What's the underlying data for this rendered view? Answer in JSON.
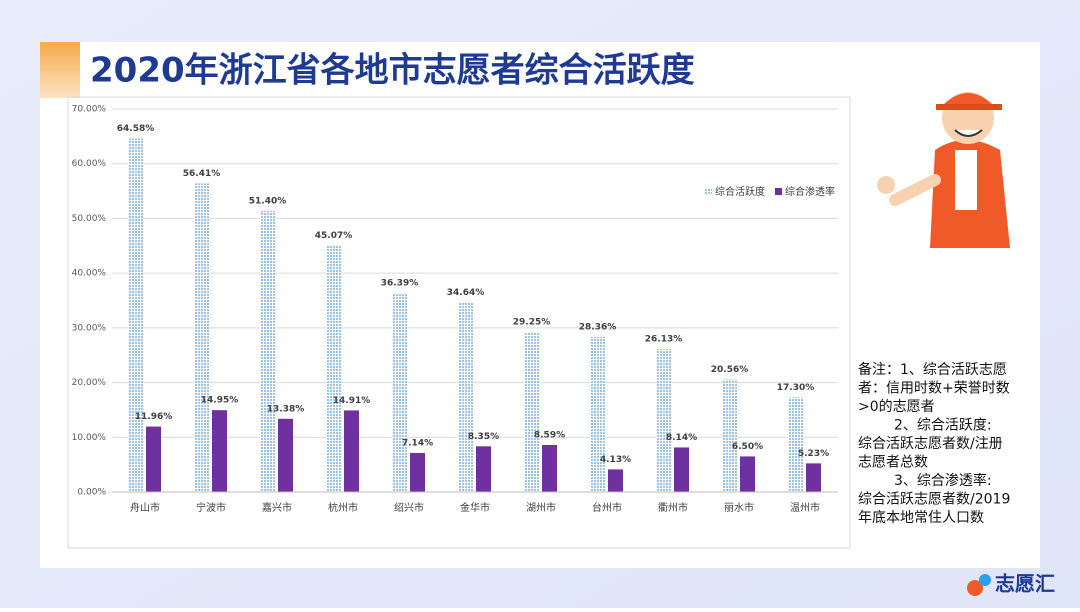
{
  "chart_data": {
    "type": "bar",
    "title": "2020年浙江省各地市志愿者综合活跃度",
    "categories": [
      "舟山市",
      "宁波市",
      "嘉兴市",
      "杭州市",
      "绍兴市",
      "金华市",
      "湖州市",
      "台州市",
      "衢州市",
      "丽水市",
      "温州市"
    ],
    "series": [
      {
        "name": "综合活跃度",
        "color": "#9dc3e6",
        "values": [
          64.58,
          56.41,
          51.4,
          45.07,
          36.39,
          34.64,
          29.25,
          28.36,
          26.13,
          20.56,
          17.3
        ],
        "value_labels": [
          "64.58%",
          "56.41%",
          "51.40%",
          "45.07%",
          "36.39%",
          "34.64%",
          "29.25%",
          "28.36%",
          "26.13%",
          "20.56%",
          "17.30%"
        ]
      },
      {
        "name": "综合渗透率",
        "color": "#7030a0",
        "values": [
          11.96,
          14.95,
          13.38,
          14.91,
          7.14,
          8.35,
          8.59,
          4.13,
          8.14,
          6.5,
          5.23
        ],
        "value_labels": [
          "11.96%",
          "14.95%",
          "13.38%",
          "14.91%",
          "7.14%",
          "8.35%",
          "8.59%",
          "4.13%",
          "8.14%",
          "6.50%",
          "5.23%"
        ]
      }
    ],
    "ylim": [
      0,
      70
    ],
    "yticks": [
      {
        "value": 0,
        "label": "0.00%"
      },
      {
        "value": 10,
        "label": "10.00%"
      },
      {
        "value": 20,
        "label": "20.00%"
      },
      {
        "value": 30,
        "label": "30.00%"
      },
      {
        "value": 40,
        "label": "40.00%"
      },
      {
        "value": 50,
        "label": "50.00%"
      },
      {
        "value": 60,
        "label": "60.00%"
      },
      {
        "value": 70,
        "label": "70.00%"
      }
    ],
    "grid": true,
    "legend": "upper right",
    "notes": [
      "备注：1、综合活跃志愿",
      "者：信用时数+荣誉时数",
      ">0的志愿者",
      "2、综合活跃度:",
      "综合活跃志愿者数/注册",
      "志愿者总数",
      "3、综合渗透率:",
      "综合活跃志愿者数/2019",
      "年底本地常住人口数"
    ],
    "logo": "志愿汇"
  }
}
